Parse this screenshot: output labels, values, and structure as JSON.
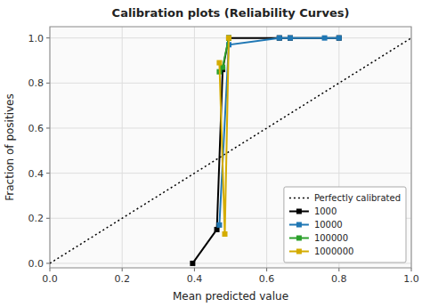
{
  "chart_data": {
    "type": "line",
    "title": "Calibration plots (Reliability Curves)",
    "xlabel": "Mean predicted value",
    "ylabel": "Fraction of positives",
    "xlim": [
      0.0,
      1.0
    ],
    "ylim": [
      -0.02,
      1.05
    ],
    "xticks": [
      {
        "value": 0,
        "label": "0.0"
      },
      0.2,
      0.4,
      0.6,
      0.8,
      {
        "value": 1,
        "label": "1.0"
      }
    ],
    "yticks": [
      {
        "value": 0,
        "label": "0.0"
      },
      0.2,
      0.4,
      0.6,
      0.8,
      {
        "value": 1,
        "label": "1.0"
      }
    ],
    "grid": true,
    "legend": "lower right",
    "series": [
      {
        "name": "Perfectly calibrated",
        "color": "#000000",
        "line_style": "dotted",
        "x": [
          0,
          1
        ],
        "values": [
          0,
          1
        ]
      },
      {
        "name": "1000",
        "color": "#000000",
        "marker": "square",
        "x": [
          0.395,
          0.462,
          0.478,
          0.495,
          0.635,
          0.665,
          0.8
        ],
        "values": [
          0.0,
          0.15,
          0.86,
          1.0,
          1.0,
          1.0,
          1.0
        ]
      },
      {
        "name": "10000",
        "color": "#1f77b4",
        "marker": "square",
        "x": [
          0.469,
          0.495,
          0.635,
          0.665,
          0.76,
          0.8
        ],
        "values": [
          0.17,
          0.97,
          1.0,
          1.0,
          1.0,
          1.0
        ]
      },
      {
        "name": "100000",
        "color": "#2ca02c",
        "marker": "square",
        "x": [
          0.469,
          0.478,
          0.495
        ],
        "values": [
          0.85,
          0.87,
          1.0
        ]
      },
      {
        "name": "1000000",
        "color": "#d4ac00",
        "marker": "square",
        "x": [
          0.469,
          0.484,
          0.495
        ],
        "values": [
          0.89,
          0.13,
          1.0
        ]
      }
    ]
  }
}
